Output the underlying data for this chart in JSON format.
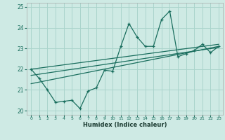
{
  "bg_color": "#ceeae4",
  "grid_color": "#aad4cc",
  "line_color": "#1a6e5e",
  "xlabel": "Humidex (Indice chaleur)",
  "xlim": [
    -0.5,
    23.5
  ],
  "ylim": [
    19.8,
    25.2
  ],
  "yticks": [
    20,
    21,
    22,
    23,
    24,
    25
  ],
  "xticks": [
    0,
    1,
    2,
    3,
    4,
    5,
    6,
    7,
    8,
    9,
    10,
    11,
    12,
    13,
    14,
    15,
    16,
    17,
    18,
    19,
    20,
    21,
    22,
    23
  ],
  "main_line_x": [
    0,
    1,
    2,
    3,
    4,
    5,
    6,
    7,
    8,
    9,
    10,
    11,
    12,
    13,
    14,
    15,
    16,
    17,
    18,
    19,
    20,
    21,
    22,
    23
  ],
  "main_line_y": [
    22.0,
    21.55,
    21.0,
    20.4,
    20.45,
    20.5,
    20.1,
    20.95,
    21.1,
    21.95,
    21.9,
    23.1,
    24.2,
    23.55,
    23.1,
    23.1,
    24.4,
    24.8,
    22.6,
    22.75,
    22.9,
    23.2,
    22.8,
    23.1
  ],
  "trend1_x": [
    0,
    23
  ],
  "trend1_y": [
    22.0,
    23.2
  ],
  "trend2_x": [
    0,
    23
  ],
  "trend2_y": [
    21.7,
    23.05
  ],
  "trend3_x": [
    0,
    23
  ],
  "trend3_y": [
    21.3,
    23.1
  ]
}
